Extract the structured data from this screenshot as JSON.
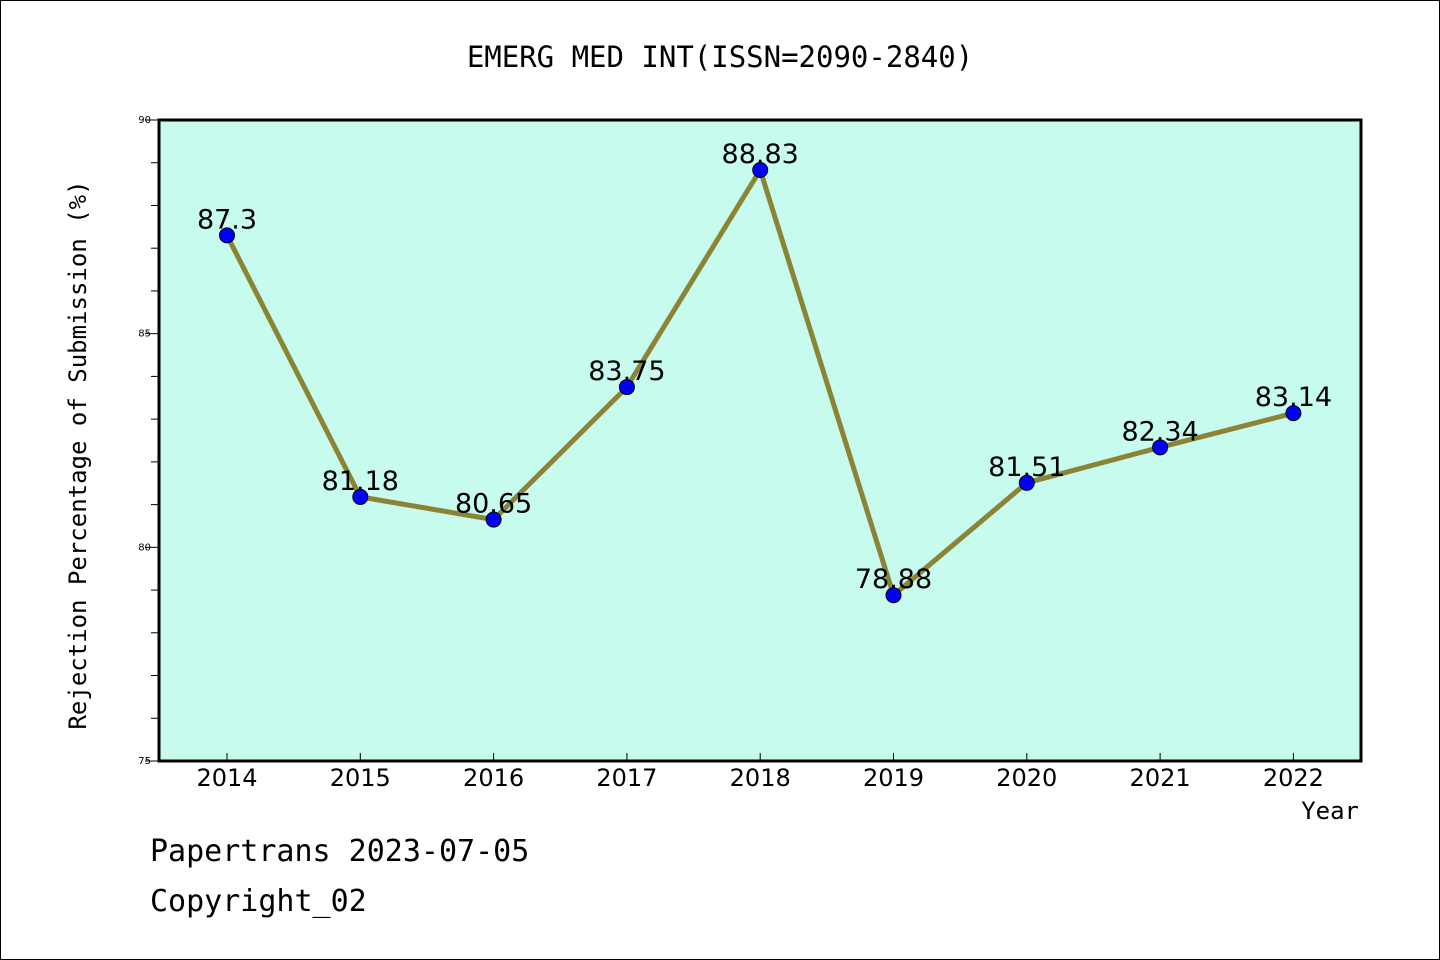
{
  "chart_data": {
    "type": "line",
    "title": "EMERG MED INT(ISSN=2090-2840)",
    "xlabel": "Year",
    "ylabel": "Rejection Percentage of Submission (%)",
    "categories": [
      "2014",
      "2015",
      "2016",
      "2017",
      "2018",
      "2019",
      "2020",
      "2021",
      "2022"
    ],
    "series": [
      {
        "values": [
          87.3,
          81.18,
          80.65,
          83.75,
          88.83,
          78.88,
          81.51,
          82.34,
          83.14
        ]
      }
    ],
    "data_labels": [
      "87.3",
      "81.18",
      "80.65",
      "83.75",
      "88.83",
      "78.88",
      "81.51",
      "82.34",
      "83.14"
    ],
    "ylim": [
      75,
      90
    ],
    "yticks": [
      75,
      80,
      85,
      90
    ],
    "grid": false,
    "legend": "none",
    "colors": {
      "plot_background": "#c6fbee",
      "line": "#8b8434",
      "marker": "#0000ff"
    }
  },
  "footer": {
    "line1": "Papertrans 2023-07-05",
    "line2": "Copyright_02"
  }
}
